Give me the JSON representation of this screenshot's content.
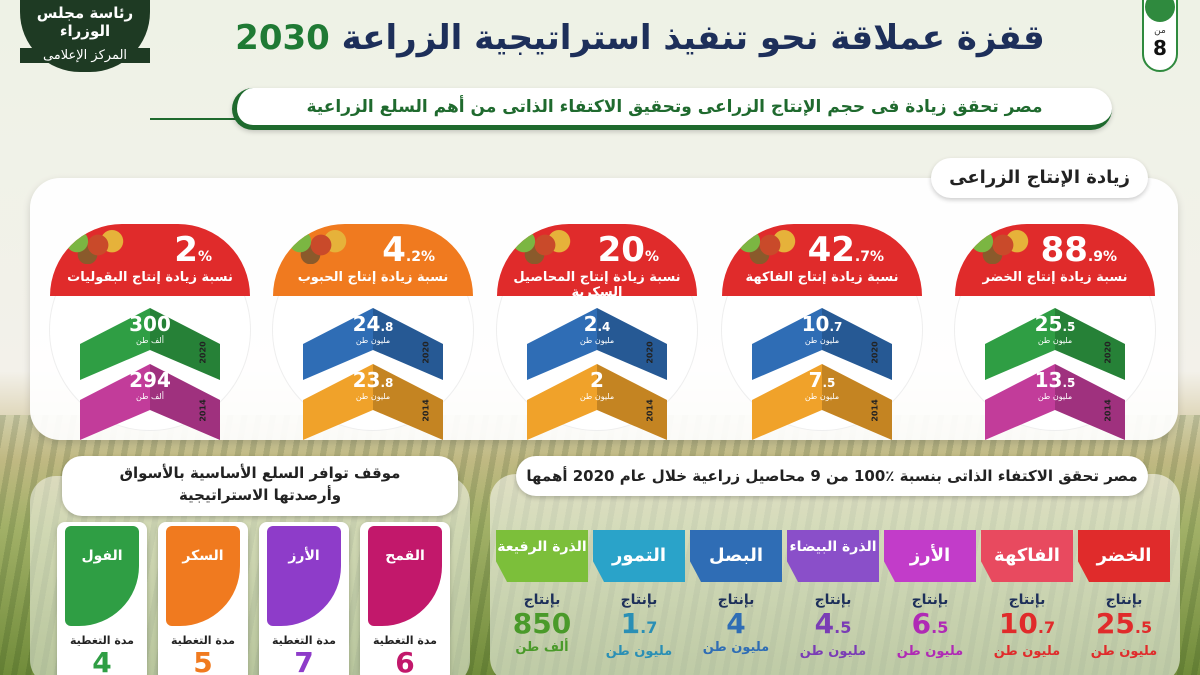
{
  "header": {
    "logo_line1": "رئاسة مجلس الوزراء",
    "logo_line2": "المركز الإعلامى",
    "title_text": "قفزة عملاقة نحو تنفيذ استراتيجية الزراعة",
    "title_year": "2030",
    "page_from": "من",
    "page_total": "8",
    "subtitle": "مصر تحقق زيادة فى حجم الإنتاج الزراعى وتحقيق الاكتفاء الذاتى من أهم السلع الزراعية"
  },
  "production": {
    "section_title": "زيادة الإنتاج الزراعى",
    "items": [
      {
        "pct": "88",
        "pct_dec": ".9",
        "label": "نسبة زيادة إنتاج الخضر",
        "color": "#e02b2b",
        "top_color": "#2f9e44",
        "top_val": "25",
        "top_dec": ".5",
        "top_unit": "مليون طن",
        "bottom_color": "#c23c9a",
        "bottom_val": "13",
        "bottom_dec": ".5",
        "bottom_unit": "مليون طن",
        "year_top": "2020",
        "year_bottom": "2014"
      },
      {
        "pct": "42",
        "pct_dec": ".7",
        "label": "نسبة زيادة إنتاج الفاكهة",
        "color": "#e02b2b",
        "top_color": "#2f6db5",
        "top_val": "10",
        "top_dec": ".7",
        "top_unit": "مليون طن",
        "bottom_color": "#f0a22a",
        "bottom_val": "7",
        "bottom_dec": ".5",
        "bottom_unit": "مليون طن",
        "year_top": "2020",
        "year_bottom": "2014"
      },
      {
        "pct": "20",
        "pct_dec": "",
        "label": "نسبة زيادة إنتاج المحاصيل السكرية",
        "color": "#e02b2b",
        "top_color": "#2f6db5",
        "top_val": "2",
        "top_dec": ".4",
        "top_unit": "مليون طن",
        "bottom_color": "#f0a22a",
        "bottom_val": "2",
        "bottom_dec": "",
        "bottom_unit": "مليون طن",
        "year_top": "2020",
        "year_bottom": "2014"
      },
      {
        "pct": "4",
        "pct_dec": ".2",
        "label": "نسبة زيادة إنتاج الحبوب",
        "color": "#f07a1f",
        "top_color": "#2f6db5",
        "top_val": "24",
        "top_dec": ".8",
        "top_unit": "مليون طن",
        "bottom_color": "#f0a22a",
        "bottom_val": "23",
        "bottom_dec": ".8",
        "bottom_unit": "مليون طن",
        "year_top": "2020",
        "year_bottom": "2014"
      },
      {
        "pct": "2",
        "pct_dec": "",
        "label": "نسبة زيادة إنتاج البقوليات",
        "color": "#e02b2b",
        "top_color": "#2f9e44",
        "top_val": "300",
        "top_dec": "",
        "top_unit": "ألف طن",
        "bottom_color": "#c23c9a",
        "bottom_val": "294",
        "bottom_dec": "",
        "bottom_unit": "ألف طن",
        "year_top": "2020",
        "year_bottom": "2014"
      }
    ],
    "pct_sign": "%"
  },
  "self_sufficiency": {
    "title": "مصر تحقق الاكتفاء الذاتى بنسبة ٪100 من 9 محاصيل زراعية خلال عام 2020 أهمها",
    "production_label": "بإنتاج",
    "crops": [
      {
        "name": "الخضر",
        "color": "#e02b2b",
        "text_color": "#e02b2b",
        "amount": "25",
        "dec": ".5",
        "unit": "مليون طن",
        "two_line": false
      },
      {
        "name": "الفاكهة",
        "color": "#e84a5f",
        "text_color": "#e02b2b",
        "amount": "10",
        "dec": ".7",
        "unit": "مليون طن",
        "two_line": false
      },
      {
        "name": "الأرز",
        "color": "#c23cc9",
        "text_color": "#b02ab5",
        "amount": "6",
        "dec": ".5",
        "unit": "مليون طن",
        "two_line": false
      },
      {
        "name": "الذرة البيضاء",
        "color": "#8a4fc9",
        "text_color": "#7a3cb5",
        "amount": "4",
        "dec": ".5",
        "unit": "مليون طن",
        "two_line": true
      },
      {
        "name": "البصل",
        "color": "#2f6db5",
        "text_color": "#2f6db5",
        "amount": "4",
        "dec": "",
        "unit": "مليون طن",
        "two_line": false
      },
      {
        "name": "التمور",
        "color": "#2aa3c9",
        "text_color": "#2a8fb5",
        "amount": "1",
        "dec": ".7",
        "unit": "مليون طن",
        "two_line": false
      },
      {
        "name": "الذرة الرفيعة",
        "color": "#7cbf3a",
        "text_color": "#4a9a2a",
        "amount": "850",
        "dec": "",
        "unit": "ألف طن",
        "two_line": true
      }
    ]
  },
  "availability": {
    "title_line1": "موقف توافر السلع الأساسية بالأسواق",
    "title_line2": "وأرصدتها الاستراتيجية",
    "coverage_label": "مدة التغطية",
    "items": [
      {
        "name": "القمح",
        "color": "#c2186b",
        "months": "6"
      },
      {
        "name": "الأرز",
        "color": "#8e3cc9",
        "months": "7"
      },
      {
        "name": "السكر",
        "color": "#f07a1f",
        "months": "5"
      },
      {
        "name": "الفول",
        "color": "#2f9e44",
        "months": "4"
      }
    ]
  }
}
